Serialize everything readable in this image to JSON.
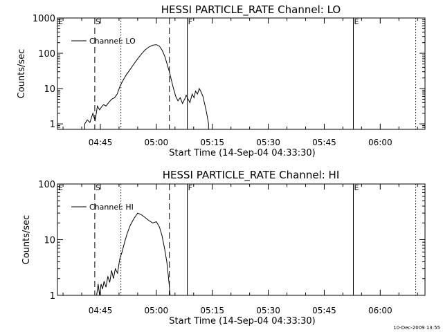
{
  "footer": {
    "timestamp": "10-Dec-2009 13:55"
  },
  "chart_data": [
    {
      "type": "line",
      "title": "HESSI PARTICLE_RATE Channel: LO",
      "xlabel": "Start Time (14-Sep-04 04:33:30)",
      "ylabel": "Counts/sec",
      "x_ticks": [
        "04:45",
        "05:00",
        "05:15",
        "05:30",
        "05:45",
        "06:00"
      ],
      "x_tick_minutes": [
        285,
        300,
        315,
        330,
        345,
        360
      ],
      "x_range_minutes": [
        273.5,
        372
      ],
      "y_scale": "log",
      "ylim": [
        0.7,
        1000
      ],
      "y_ticks": [
        "1",
        "10",
        "100",
        "1000"
      ],
      "y_tick_values": [
        1,
        10,
        100,
        1000
      ],
      "legend": {
        "label": "Channel: LO",
        "placement": "top-left"
      },
      "markers": [
        {
          "label": "E",
          "minute": 273.5,
          "style": "none"
        },
        {
          "label": "S",
          "minute": 283.5,
          "style": "dashed"
        },
        {
          "label": "",
          "minute": 290.5,
          "style": "dotted"
        },
        {
          "label": "",
          "minute": 303.5,
          "style": "dashed"
        },
        {
          "label": "F",
          "minute": 308.3,
          "style": "solid"
        },
        {
          "label": "E",
          "minute": 352.8,
          "style": "solid"
        },
        {
          "label": "",
          "minute": 369.5,
          "style": "dotted"
        }
      ],
      "series": [
        {
          "name": "Channel: LO",
          "x": [
            280.8,
            281.5,
            282.2,
            283.0,
            283.6,
            284.2,
            284.8,
            285.3,
            285.9,
            286.5,
            287.2,
            288.0,
            288.8,
            289.5,
            290.3,
            291.2,
            292.0,
            293.0,
            294.0,
            295.0,
            296.0,
            297.0,
            298.0,
            299.0,
            300.0,
            300.8,
            301.6,
            302.3,
            303.0,
            303.5,
            304.0,
            304.6,
            305.2,
            305.8,
            306.4,
            307.0,
            307.6,
            308.0,
            308.5,
            309.0,
            309.6,
            310.1,
            310.5,
            311.0,
            311.5,
            312.0,
            312.5,
            313.0,
            313.5,
            314.0
          ],
          "y": [
            1.0,
            1.3,
            1.1,
            2.0,
            1.2,
            3.2,
            2.5,
            3.0,
            3.5,
            3.2,
            4.0,
            5.0,
            5.5,
            7.0,
            12,
            18,
            25,
            35,
            50,
            70,
            95,
            125,
            150,
            170,
            175,
            160,
            120,
            80,
            45,
            30,
            18,
            10,
            6,
            4.5,
            5.5,
            3.8,
            5.0,
            6.5,
            5.0,
            4.0,
            7.0,
            5.5,
            8.5,
            7.0,
            10,
            8.0,
            6.0,
            3.5,
            2.0,
            1.0
          ]
        }
      ]
    },
    {
      "type": "line",
      "title": "HESSI PARTICLE_RATE Channel: HI",
      "xlabel": "Start Time (14-Sep-04 04:33:30)",
      "ylabel": "Counts/sec",
      "x_ticks": [
        "04:45",
        "05:00",
        "05:15",
        "05:30",
        "05:45",
        "06:00"
      ],
      "x_tick_minutes": [
        285,
        300,
        315,
        330,
        345,
        360
      ],
      "x_range_minutes": [
        273.5,
        372
      ],
      "y_scale": "log",
      "ylim": [
        1,
        100
      ],
      "y_ticks": [
        "1",
        "10",
        "100"
      ],
      "y_tick_values": [
        1,
        10,
        100
      ],
      "legend": {
        "label": "Channel: HI",
        "placement": "top-left"
      },
      "markers": [
        {
          "label": "E",
          "minute": 273.5,
          "style": "none"
        },
        {
          "label": "S",
          "minute": 283.5,
          "style": "dashed"
        },
        {
          "label": "",
          "minute": 290.5,
          "style": "dotted"
        },
        {
          "label": "",
          "minute": 303.5,
          "style": "dashed"
        },
        {
          "label": "F",
          "minute": 308.3,
          "style": "solid"
        },
        {
          "label": "E",
          "minute": 352.8,
          "style": "solid"
        },
        {
          "label": "",
          "minute": 369.5,
          "style": "dotted"
        }
      ],
      "series": [
        {
          "name": "Channel: HI",
          "x": [
            284.0,
            284.4,
            284.8,
            285.2,
            285.6,
            286.0,
            286.5,
            287.0,
            287.5,
            288.0,
            288.5,
            289.0,
            289.6,
            290.2,
            290.8,
            291.5,
            292.2,
            293.0,
            294.0,
            295.0,
            296.0,
            297.0,
            298.0,
            299.0,
            300.0,
            300.8,
            301.5,
            302.2,
            302.8,
            303.3,
            303.7
          ],
          "y": [
            1.0,
            1.6,
            1.0,
            1.6,
            1.3,
            1.8,
            1.4,
            2.2,
            1.7,
            2.8,
            2.0,
            3.0,
            2.5,
            4.5,
            6.0,
            9.0,
            13,
            18,
            24,
            30,
            28,
            25,
            22,
            20,
            21,
            17,
            12,
            7,
            4,
            2,
            1.0
          ]
        }
      ]
    }
  ]
}
